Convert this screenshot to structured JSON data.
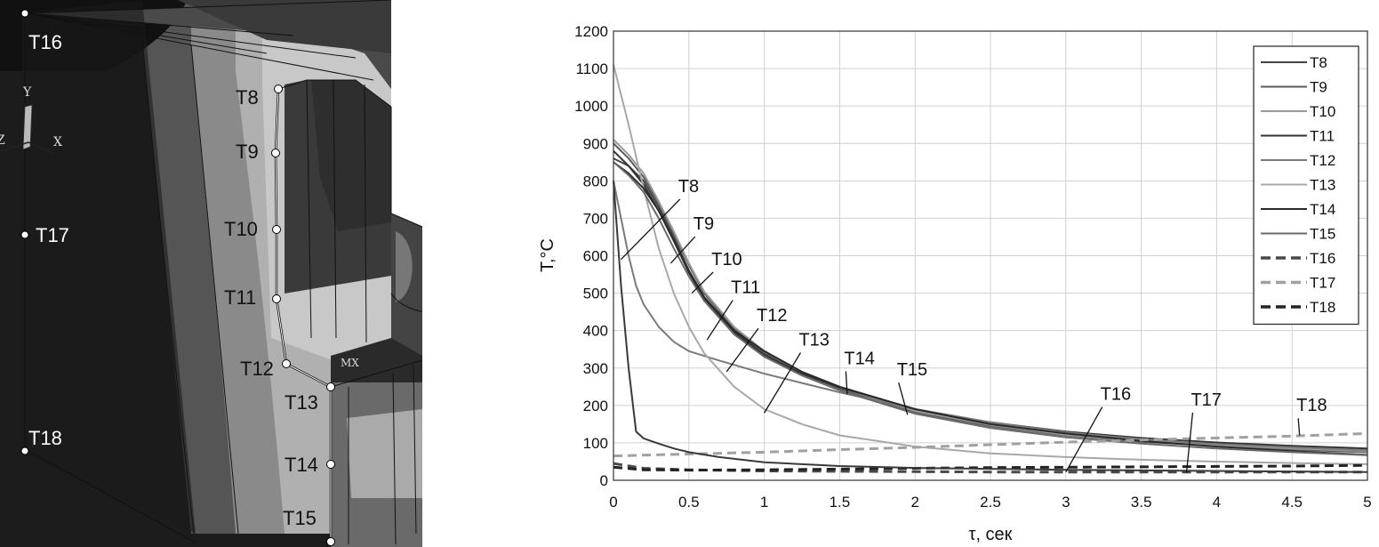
{
  "model": {
    "axis_labels": {
      "y": "Y",
      "x": "X",
      "z": "Z"
    },
    "max_marker": "MX",
    "points": [
      {
        "id": "T16",
        "label": "T16"
      },
      {
        "id": "T17",
        "label": "T17"
      },
      {
        "id": "T18",
        "label": "T18"
      },
      {
        "id": "T8",
        "label": "T8"
      },
      {
        "id": "T9",
        "label": "T9"
      },
      {
        "id": "T10",
        "label": "T10"
      },
      {
        "id": "T11",
        "label": "T11"
      },
      {
        "id": "T12",
        "label": "T12"
      },
      {
        "id": "T13",
        "label": "T13"
      },
      {
        "id": "T14",
        "label": "T14"
      },
      {
        "id": "T15",
        "label": "T15"
      }
    ]
  },
  "chart_data": {
    "type": "line",
    "title": "",
    "xlabel": "τ, сек",
    "ylabel": "T,°C",
    "xlim": [
      0,
      5
    ],
    "ylim": [
      0,
      1200
    ],
    "xticks": [
      "0",
      "0.5",
      "1",
      "1.5",
      "2",
      "2.5",
      "3",
      "3.5",
      "4",
      "4.5",
      "5"
    ],
    "yticks": [
      "0",
      "100",
      "200",
      "300",
      "400",
      "500",
      "600",
      "700",
      "800",
      "900",
      "1000",
      "1100",
      "1200"
    ],
    "grid": true,
    "legend_position": "top-right",
    "series": [
      {
        "name": "T8",
        "color": "#444444",
        "dash": false,
        "x": [
          0,
          0.1,
          0.2,
          0.3,
          0.4,
          0.5,
          0.6,
          0.8,
          1,
          1.25,
          1.5,
          2,
          2.5,
          3,
          3.5,
          4,
          4.5,
          5
        ],
        "y": [
          860,
          840,
          800,
          730,
          650,
          560,
          490,
          400,
          340,
          285,
          245,
          185,
          150,
          128,
          110,
          98,
          88,
          80
        ]
      },
      {
        "name": "T9",
        "color": "#5a5a5a",
        "dash": false,
        "x": [
          0,
          0.1,
          0.2,
          0.3,
          0.4,
          0.5,
          0.6,
          0.8,
          1,
          1.25,
          1.5,
          2,
          2.5,
          3,
          3.5,
          4,
          4.5,
          5
        ],
        "y": [
          900,
          860,
          810,
          740,
          660,
          575,
          500,
          405,
          340,
          285,
          245,
          182,
          145,
          120,
          103,
          92,
          82,
          75
        ]
      },
      {
        "name": "T10",
        "color": "#9a9a9a",
        "dash": false,
        "x": [
          0,
          0.1,
          0.2,
          0.3,
          0.4,
          0.5,
          0.6,
          0.8,
          1,
          1.25,
          1.5,
          2,
          2.5,
          3,
          3.5,
          4,
          4.5,
          5
        ],
        "y": [
          910,
          870,
          820,
          745,
          665,
          580,
          505,
          410,
          345,
          288,
          248,
          185,
          148,
          122,
          105,
          94,
          85,
          78
        ]
      },
      {
        "name": "T11",
        "color": "#333333",
        "dash": false,
        "x": [
          0,
          0.1,
          0.2,
          0.3,
          0.4,
          0.5,
          0.6,
          0.8,
          1,
          1.25,
          1.5,
          2,
          2.5,
          3,
          3.5,
          4,
          4.5,
          5
        ],
        "y": [
          880,
          840,
          790,
          720,
          640,
          555,
          485,
          395,
          335,
          285,
          248,
          190,
          155,
          130,
          113,
          101,
          92,
          85
        ]
      },
      {
        "name": "T12",
        "color": "#7a7a7a",
        "dash": false,
        "x": [
          0,
          0.05,
          0.1,
          0.15,
          0.2,
          0.3,
          0.4,
          0.5,
          0.7,
          1,
          1.25,
          1.5,
          2,
          2.5,
          3,
          3.5,
          4,
          4.5,
          5
        ],
        "y": [
          800,
          700,
          600,
          520,
          470,
          410,
          370,
          345,
          320,
          285,
          260,
          235,
          190,
          155,
          128,
          110,
          97,
          88,
          80
        ]
      },
      {
        "name": "T13",
        "color": "#a8a8a8",
        "dash": false,
        "x": [
          0,
          0.1,
          0.2,
          0.3,
          0.4,
          0.5,
          0.6,
          0.8,
          1,
          1.25,
          1.5,
          2,
          2.5,
          3,
          3.5,
          4,
          4.5,
          5
        ],
        "y": [
          1110,
          950,
          780,
          620,
          500,
          410,
          340,
          250,
          190,
          150,
          120,
          90,
          72,
          62,
          55,
          50,
          46,
          43
        ]
      },
      {
        "name": "T14",
        "color": "#2a2a2a",
        "dash": false,
        "x": [
          0,
          0.1,
          0.2,
          0.3,
          0.4,
          0.5,
          0.6,
          0.8,
          1,
          1.25,
          1.5,
          2,
          2.5,
          3,
          3.5,
          4,
          4.5,
          5
        ],
        "y": [
          850,
          820,
          780,
          720,
          640,
          560,
          490,
          400,
          345,
          290,
          250,
          190,
          150,
          125,
          105,
          90,
          78,
          68
        ]
      },
      {
        "name": "T15",
        "color": "#6a6a6a",
        "dash": false,
        "x": [
          0,
          0.1,
          0.2,
          0.3,
          0.4,
          0.5,
          0.6,
          0.8,
          1,
          1.25,
          1.5,
          2,
          2.5,
          3,
          3.5,
          4,
          4.5,
          5
        ],
        "y": [
          850,
          815,
          770,
          700,
          620,
          545,
          480,
          390,
          330,
          280,
          240,
          178,
          140,
          115,
          98,
          85,
          75,
          67
        ]
      },
      {
        "name": "T16",
        "color": "#4a4a4a",
        "dash": true,
        "x": [
          0,
          0.2,
          0.5,
          1,
          1.5,
          2,
          2.5,
          3,
          3.5,
          4,
          4.5,
          5
        ],
        "y": [
          45,
          32,
          28,
          25,
          24,
          23,
          22,
          22,
          22,
          22,
          22,
          22
        ]
      },
      {
        "name": "T17",
        "color": "#a0a0a0",
        "dash": true,
        "x": [
          0,
          0.5,
          1,
          1.5,
          2,
          2.5,
          3,
          3.5,
          4,
          4.5,
          5
        ],
        "y": [
          65,
          70,
          75,
          82,
          88,
          95,
          102,
          108,
          113,
          118,
          125
        ]
      },
      {
        "name": "T18",
        "color": "#222222",
        "dash": true,
        "x": [
          0,
          0.2,
          0.5,
          1,
          1.5,
          2,
          2.5,
          3,
          3.5,
          4,
          4.5,
          5
        ],
        "y": [
          35,
          28,
          27,
          28,
          30,
          32,
          34,
          35,
          36,
          37,
          38,
          40
        ]
      },
      {
        "name": "",
        "color": "#3a3a3a",
        "dash": false,
        "x": [
          0,
          0.05,
          0.1,
          0.15,
          0.2,
          0.3,
          0.4,
          0.5,
          0.7,
          1,
          1.5,
          2,
          3,
          4,
          5
        ],
        "y": [
          800,
          520,
          300,
          130,
          112,
          98,
          85,
          75,
          62,
          48,
          38,
          33,
          28,
          25,
          22
        ]
      }
    ],
    "annotations": [
      {
        "text": "T8",
        "x": 0.5,
        "y": 770,
        "tx": 0.05,
        "ty": 590
      },
      {
        "text": "T9",
        "x": 0.6,
        "y": 670,
        "tx": 0.38,
        "ty": 580
      },
      {
        "text": "T10",
        "x": 0.72,
        "y": 575,
        "tx": 0.52,
        "ty": 500
      },
      {
        "text": "T11",
        "x": 0.85,
        "y": 500,
        "tx": 0.62,
        "ty": 375
      },
      {
        "text": "T12",
        "x": 1.02,
        "y": 425,
        "tx": 0.75,
        "ty": 290
      },
      {
        "text": "T13",
        "x": 1.3,
        "y": 360,
        "tx": 1,
        "ty": 180
      },
      {
        "text": "T14",
        "x": 1.6,
        "y": 310,
        "tx": 1.55,
        "ty": 230
      },
      {
        "text": "T15",
        "x": 1.95,
        "y": 280,
        "tx": 1.95,
        "ty": 175
      },
      {
        "text": "T16",
        "x": 3.3,
        "y": 215,
        "tx": 3,
        "ty": 22
      },
      {
        "text": "T17",
        "x": 3.9,
        "y": 200,
        "tx": 3.8,
        "ty": 20
      },
      {
        "text": "T18",
        "x": 4.6,
        "y": 185,
        "tx": 4.55,
        "ty": 120
      }
    ]
  }
}
